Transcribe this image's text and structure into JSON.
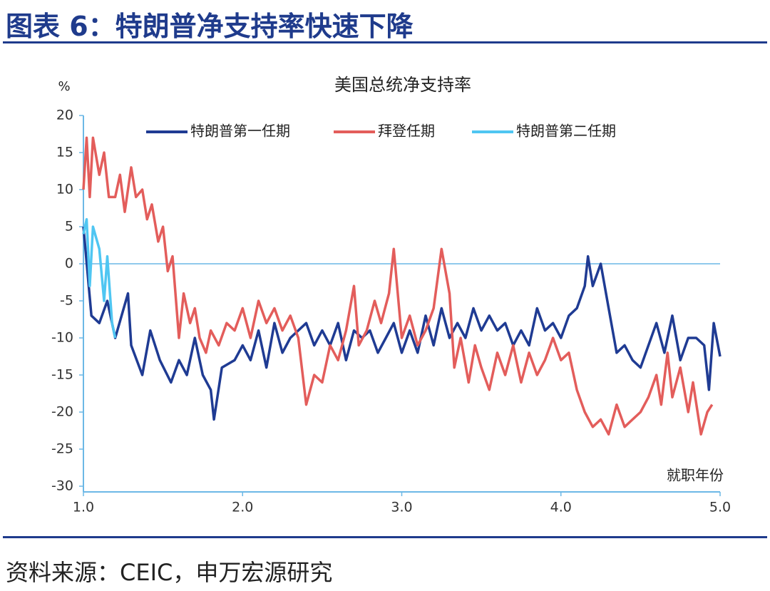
{
  "header": {
    "title": "图表 6：特朗普净支持率快速下降"
  },
  "source": "资料来源：CEIC，申万宏源研究",
  "chart_data": {
    "type": "line",
    "title": "美国总统净支持率",
    "y_label": "%",
    "x_label": "就职年份",
    "xlim": [
      1,
      5
    ],
    "xticks": [
      {
        "value": 1,
        "label": "1.0"
      },
      {
        "value": 2,
        "label": "2.0"
      },
      {
        "value": 3,
        "label": "3.0"
      },
      {
        "value": 4,
        "label": "4.0"
      },
      {
        "value": 5,
        "label": "5.0"
      }
    ],
    "ylim": [
      -30,
      20
    ],
    "yticks": [
      20,
      15,
      10,
      5,
      0,
      -5,
      -10,
      -15,
      -20,
      -25,
      -30
    ],
    "grid": false,
    "legend": "top",
    "series": [
      {
        "name": "特朗普第一任期",
        "color": "#1f3b93",
        "x": [
          1.0,
          1.05,
          1.1,
          1.15,
          1.2,
          1.28,
          1.3,
          1.37,
          1.42,
          1.48,
          1.55,
          1.6,
          1.65,
          1.7,
          1.75,
          1.8,
          1.82,
          1.87,
          1.95,
          2.0,
          2.05,
          2.1,
          2.15,
          2.2,
          2.25,
          2.3,
          2.4,
          2.45,
          2.5,
          2.55,
          2.6,
          2.65,
          2.7,
          2.75,
          2.8,
          2.85,
          2.9,
          2.95,
          3.0,
          3.05,
          3.1,
          3.15,
          3.2,
          3.25,
          3.3,
          3.35,
          3.4,
          3.45,
          3.5,
          3.55,
          3.6,
          3.65,
          3.7,
          3.75,
          3.8,
          3.85,
          3.9,
          3.95,
          4.0,
          4.05,
          4.1,
          4.15,
          4.17,
          4.2,
          4.25,
          4.3,
          4.35,
          4.4,
          4.45,
          4.5,
          4.55,
          4.6,
          4.65,
          4.7,
          4.75,
          4.8,
          4.85,
          4.9,
          4.93,
          4.96,
          5.0
        ],
        "values": [
          5,
          -7,
          -8,
          -5,
          -10,
          -4,
          -11,
          -15,
          -9,
          -13,
          -16,
          -13,
          -15,
          -10,
          -15,
          -17,
          -21,
          -14,
          -13,
          -11,
          -13,
          -9,
          -14,
          -8,
          -12,
          -10,
          -8,
          -11,
          -9,
          -11,
          -8,
          -13,
          -9,
          -10,
          -9,
          -12,
          -10,
          -8,
          -12,
          -9,
          -12,
          -7,
          -11,
          -6,
          -10,
          -8,
          -10,
          -6,
          -9,
          -7,
          -9,
          -8,
          -11,
          -9,
          -11,
          -6,
          -9,
          -8,
          -10,
          -7,
          -6,
          -3,
          1,
          -3,
          0,
          -6,
          -12,
          -11,
          -13,
          -14,
          -11,
          -8,
          -12,
          -7,
          -13,
          -10,
          -10,
          -11,
          -17,
          -8,
          -12.5
        ]
      },
      {
        "name": "拜登任期",
        "color": "#e35d5b",
        "x": [
          1.0,
          1.02,
          1.04,
          1.06,
          1.1,
          1.13,
          1.16,
          1.2,
          1.23,
          1.26,
          1.3,
          1.33,
          1.37,
          1.4,
          1.43,
          1.47,
          1.5,
          1.53,
          1.56,
          1.6,
          1.63,
          1.67,
          1.7,
          1.73,
          1.77,
          1.8,
          1.85,
          1.9,
          1.95,
          2.0,
          2.05,
          2.1,
          2.15,
          2.2,
          2.25,
          2.3,
          2.35,
          2.4,
          2.45,
          2.5,
          2.55,
          2.6,
          2.65,
          2.7,
          2.73,
          2.78,
          2.83,
          2.87,
          2.92,
          2.95,
          3.0,
          3.05,
          3.1,
          3.15,
          3.2,
          3.25,
          3.3,
          3.33,
          3.37,
          3.42,
          3.46,
          3.5,
          3.55,
          3.6,
          3.65,
          3.7,
          3.75,
          3.8,
          3.85,
          3.9,
          3.95,
          4.0,
          4.05,
          4.1,
          4.15,
          4.2,
          4.25,
          4.3,
          4.35,
          4.4,
          4.45,
          4.5,
          4.55,
          4.6,
          4.63,
          4.67,
          4.7,
          4.75,
          4.8,
          4.83,
          4.88,
          4.92,
          4.95
        ],
        "values": [
          10,
          17,
          9,
          17,
          12,
          15,
          9,
          9,
          12,
          7,
          13,
          9,
          10,
          6,
          8,
          3,
          5,
          -1,
          1,
          -10,
          -4,
          -8,
          -6,
          -10,
          -12,
          -9,
          -11,
          -8,
          -9,
          -6,
          -10,
          -5,
          -8,
          -6,
          -9,
          -7,
          -10,
          -19,
          -15,
          -16,
          -11,
          -13,
          -9,
          -3,
          -11,
          -9,
          -5,
          -8,
          -4,
          2,
          -10,
          -7,
          -11,
          -9,
          -6,
          2,
          -4,
          -14,
          -10,
          -16,
          -11,
          -14,
          -17,
          -12,
          -15,
          -11,
          -16,
          -12,
          -15,
          -13,
          -10,
          -13,
          -12,
          -17,
          -20,
          -22,
          -21,
          -23,
          -19,
          -22,
          -21,
          -20,
          -18,
          -15,
          -19,
          -12,
          -18,
          -14,
          -20,
          -16,
          -23,
          -20,
          -19
        ]
      },
      {
        "name": "特朗普第二任期",
        "color": "#4fc6f2",
        "x": [
          1.0,
          1.02,
          1.04,
          1.06,
          1.1,
          1.13,
          1.15,
          1.18,
          1.2
        ],
        "values": [
          4,
          6,
          -3,
          5,
          2,
          -5,
          1,
          -8,
          -10
        ]
      }
    ]
  }
}
